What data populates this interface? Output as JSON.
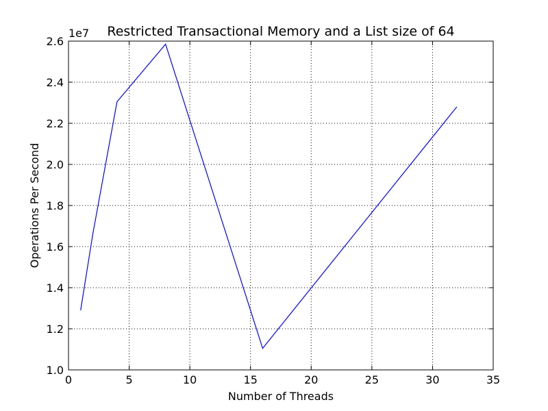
{
  "chart_data": {
    "type": "line",
    "title": "Restricted Transactional Memory and a List size of 64",
    "xlabel": "Number of Threads",
    "ylabel": "Operations Per Second",
    "y_offset_label": "1e7",
    "xlim": [
      0,
      35
    ],
    "ylim": [
      1.0,
      2.6
    ],
    "y_unit_multiplier": 10000000,
    "xticks": [
      0,
      5,
      10,
      15,
      20,
      25,
      30,
      35
    ],
    "xtick_labels": [
      "0",
      "5",
      "10",
      "15",
      "20",
      "25",
      "30",
      "35"
    ],
    "yticks": [
      1.0,
      1.2,
      1.4,
      1.6,
      1.8,
      2.0,
      2.2,
      2.4,
      2.6
    ],
    "ytick_labels": [
      "1.0",
      "1.2",
      "1.4",
      "1.6",
      "1.8",
      "2.0",
      "2.2",
      "2.4",
      "2.6"
    ],
    "grid": true,
    "grid_style": "dotted",
    "series": [
      {
        "color": "#0000ff",
        "x": [
          1,
          2,
          4,
          8,
          16,
          32
        ],
        "y": [
          1.29,
          1.66,
          2.305,
          2.585,
          1.105,
          2.28
        ]
      }
    ]
  }
}
